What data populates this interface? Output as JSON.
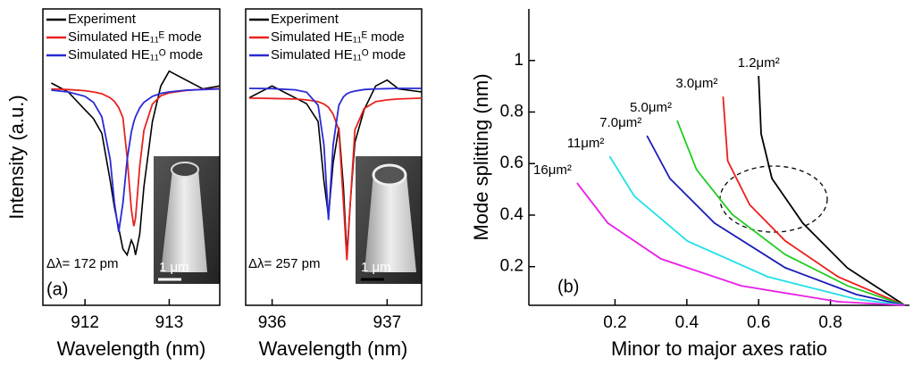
{
  "chart_data": [
    {
      "type": "line",
      "y_label": "Intensity (a.u.)",
      "x_label": "Wavelength (nm)",
      "panel_label": "(a)",
      "delta_label": "Δλ= 172 pm",
      "scale_bar_label": "1 μm",
      "xlim": [
        911.5,
        913.6
      ],
      "ylim": [
        0,
        1
      ],
      "xticks": [
        912,
        913
      ],
      "legend": "upper left",
      "x": [
        911.6,
        911.8,
        912.0,
        912.1,
        912.2,
        912.3,
        912.35,
        912.4,
        912.45,
        912.5,
        912.55,
        912.58,
        912.6,
        912.65,
        912.7,
        912.8,
        912.9,
        913.0,
        913.2,
        913.4,
        913.6
      ],
      "series": [
        {
          "name": "Experiment",
          "color": "#000000",
          "values": [
            0.75,
            0.72,
            0.66,
            0.63,
            0.58,
            0.42,
            0.33,
            0.26,
            0.19,
            0.17,
            0.22,
            0.2,
            0.17,
            0.24,
            0.4,
            0.62,
            0.74,
            0.79,
            0.76,
            0.73,
            0.74
          ]
        },
        {
          "name": "Simulated HE₁₁ᴱ mode",
          "color": "#e8231f",
          "values": [
            0.73,
            0.728,
            0.724,
            0.72,
            0.714,
            0.7,
            0.688,
            0.667,
            0.633,
            0.5,
            0.324,
            0.267,
            0.294,
            0.469,
            0.59,
            0.679,
            0.707,
            0.717,
            0.725,
            0.729,
            0.731
          ]
        },
        {
          "name": "Simulated HE₁₁ᴼ mode",
          "color": "#2a2ad6",
          "values": [
            0.726,
            0.72,
            0.705,
            0.685,
            0.636,
            0.491,
            0.345,
            0.248,
            0.345,
            0.491,
            0.584,
            0.619,
            0.636,
            0.666,
            0.685,
            0.705,
            0.715,
            0.72,
            0.726,
            0.728,
            0.73
          ]
        }
      ]
    },
    {
      "type": "line",
      "x_label": "Wavelength (nm)",
      "delta_label": "Δλ= 257 pm",
      "scale_bar_label": "1 μm",
      "xlim": [
        935.77,
        937.3
      ],
      "ylim": [
        0,
        1
      ],
      "xticks": [
        936,
        937
      ],
      "legend": "upper left",
      "x": [
        935.8,
        936.0,
        936.2,
        936.3,
        936.4,
        936.45,
        936.49,
        936.53,
        936.58,
        936.62,
        936.65,
        936.68,
        936.72,
        936.8,
        936.9,
        937.0,
        937.1,
        937.3
      ],
      "series": [
        {
          "name": "Experiment",
          "color": "#000000",
          "values": [
            0.7,
            0.74,
            0.7,
            0.68,
            0.62,
            0.42,
            0.3,
            0.48,
            0.6,
            0.4,
            0.17,
            0.35,
            0.55,
            0.66,
            0.74,
            0.76,
            0.73,
            0.72
          ]
        },
        {
          "name": "Simulated HE₁₁ᴱ mode",
          "color": "#e8231f",
          "values": [
            0.699,
            0.698,
            0.696,
            0.693,
            0.687,
            0.679,
            0.668,
            0.645,
            0.592,
            0.349,
            0.152,
            0.349,
            0.592,
            0.664,
            0.687,
            0.693,
            0.696,
            0.699
          ]
        },
        {
          "name": "Simulated HE₁₁ᴼ mode",
          "color": "#2a2ad6",
          "values": [
            0.732,
            0.731,
            0.727,
            0.719,
            0.675,
            0.541,
            0.288,
            0.541,
            0.675,
            0.703,
            0.714,
            0.719,
            0.723,
            0.728,
            0.73,
            0.731,
            0.732,
            0.732
          ]
        }
      ]
    },
    {
      "type": "line",
      "y_label": "Mode splitting (nm)",
      "x_label": "Minor to major axes ratio",
      "panel_label": "(b)",
      "xlim": [
        -0.04,
        1.02
      ],
      "ylim": [
        0.05,
        1.2
      ],
      "xticks": [
        0.2,
        0.4,
        0.6,
        0.8
      ],
      "yticks": [
        0.2,
        0.4,
        0.6,
        0.8,
        1.0
      ],
      "legend": "none",
      "series": [
        {
          "name": "1.2μm²",
          "color": "#000000",
          "x": [
            0.6,
            0.607,
            0.637,
            0.723,
            0.847,
            1.007
          ],
          "values": [
            0.94,
            0.715,
            0.542,
            0.369,
            0.195,
            0.05
          ]
        },
        {
          "name": "3.0μm²",
          "color": "#ee1c1c",
          "x": [
            0.501,
            0.514,
            0.575,
            0.674,
            0.822,
            1.007
          ],
          "values": [
            0.86,
            0.61,
            0.44,
            0.3,
            0.16,
            0.05
          ]
        },
        {
          "name": "5.0μm²",
          "color": "#22cc22",
          "x": [
            0.373,
            0.427,
            0.526,
            0.674,
            0.847,
            1.007
          ],
          "values": [
            0.767,
            0.576,
            0.403,
            0.247,
            0.126,
            0.05
          ]
        },
        {
          "name": "7.0μm²",
          "color": "#1a1ab8",
          "x": [
            0.289,
            0.353,
            0.477,
            0.674,
            0.872,
            1.007
          ],
          "values": [
            0.708,
            0.542,
            0.369,
            0.196,
            0.092,
            0.05
          ]
        },
        {
          "name": "11μm²",
          "color": "#22e0e8",
          "x": [
            0.185,
            0.254,
            0.402,
            0.625,
            0.872,
            1.007
          ],
          "values": [
            0.628,
            0.473,
            0.299,
            0.161,
            0.074,
            0.05
          ]
        },
        {
          "name": "16μm²",
          "color": "#e81ee8",
          "x": [
            0.094,
            0.18,
            0.328,
            0.551,
            0.822,
            1.007
          ],
          "values": [
            0.525,
            0.369,
            0.23,
            0.126,
            0.064,
            0.05
          ]
        }
      ]
    }
  ]
}
